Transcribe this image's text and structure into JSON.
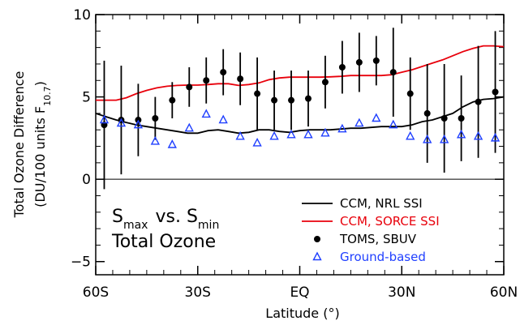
{
  "chart_data": {
    "type": "line",
    "xlabel": "Latitude (°)",
    "ylabel_line1": "Total Ozone Difference",
    "ylabel_line2_prefix": "(DU/100 units F",
    "ylabel_line2_sub": "10.7",
    "ylabel_line2_suffix": ")",
    "xlim": [
      -60,
      60
    ],
    "ylim": [
      -5.8,
      10
    ],
    "x_ticks": [
      {
        "value": -60,
        "label": "60S"
      },
      {
        "value": -30,
        "label": "30S"
      },
      {
        "value": 0,
        "label": "EQ"
      },
      {
        "value": 30,
        "label": "30N"
      },
      {
        "value": 60,
        "label": "60N"
      }
    ],
    "x_minor_ticks": [
      -55,
      -50,
      -45,
      -40,
      -35,
      -25,
      -20,
      -15,
      -10,
      -5,
      5,
      10,
      15,
      20,
      25,
      35,
      40,
      45,
      50,
      55
    ],
    "y_ticks": [
      {
        "value": -5,
        "label": "−5"
      },
      {
        "value": 0,
        "label": "0"
      },
      {
        "value": 5,
        "label": "5"
      },
      {
        "value": 10,
        "label": "10"
      }
    ],
    "y_minor_ticks": [
      -4,
      -3,
      -2,
      -1,
      1,
      2,
      3,
      4,
      6,
      7,
      8,
      9
    ],
    "zero_line": 0,
    "annotation": {
      "s_main": "S",
      "s_max_sub": "max",
      "vs": " vs. ",
      "s_min_sub": "min",
      "line2": "Total Ozone"
    },
    "legend": [
      {
        "label": "CCM, NRL SSI",
        "color": "#000000",
        "kind": "line"
      },
      {
        "label": "CCM, SORCE SSI",
        "color": "#e8000b",
        "kind": "line"
      },
      {
        "label": "TOMS, SBUV",
        "color": "#000000",
        "kind": "dot"
      },
      {
        "label": "Ground-based",
        "color": "#1f3fff",
        "kind": "triangle"
      }
    ],
    "series": [
      {
        "name": "CCM, NRL SSI",
        "kind": "line",
        "color": "#000000",
        "x": [
          -60,
          -57,
          -54,
          -51,
          -48,
          -45,
          -42,
          -39,
          -36,
          -33,
          -30,
          -27,
          -24,
          -21,
          -18,
          -15,
          -12,
          -9,
          -6,
          -3,
          0,
          3,
          6,
          9,
          12,
          15,
          18,
          21,
          24,
          27,
          30,
          33,
          36,
          39,
          42,
          45,
          48,
          51,
          54,
          57,
          60
        ],
        "y": [
          4.0,
          3.8,
          3.6,
          3.45,
          3.3,
          3.2,
          3.1,
          3.0,
          2.9,
          2.8,
          2.8,
          2.95,
          3.0,
          2.9,
          2.8,
          2.85,
          3.0,
          3.0,
          2.9,
          2.85,
          2.95,
          3.0,
          3.0,
          3.0,
          3.05,
          3.1,
          3.1,
          3.15,
          3.2,
          3.2,
          3.2,
          3.3,
          3.5,
          3.6,
          3.8,
          4.0,
          4.4,
          4.7,
          4.85,
          4.9,
          5.0
        ]
      },
      {
        "name": "CCM, SORCE SSI",
        "kind": "line",
        "color": "#e8000b",
        "x": [
          -60,
          -57,
          -54,
          -51,
          -48,
          -45,
          -42,
          -39,
          -36,
          -33,
          -30,
          -27,
          -24,
          -21,
          -18,
          -15,
          -12,
          -9,
          -6,
          -3,
          0,
          3,
          6,
          9,
          12,
          15,
          18,
          21,
          24,
          27,
          30,
          33,
          36,
          39,
          42,
          45,
          48,
          51,
          54,
          57,
          60
        ],
        "y": [
          4.8,
          4.8,
          4.8,
          4.95,
          5.2,
          5.4,
          5.55,
          5.65,
          5.7,
          5.72,
          5.72,
          5.75,
          5.8,
          5.8,
          5.7,
          5.75,
          5.85,
          6.05,
          6.15,
          6.2,
          6.2,
          6.2,
          6.2,
          6.22,
          6.25,
          6.3,
          6.3,
          6.3,
          6.3,
          6.35,
          6.5,
          6.65,
          6.85,
          7.05,
          7.25,
          7.5,
          7.75,
          7.95,
          8.1,
          8.1,
          8.05
        ]
      },
      {
        "name": "TOMS, SBUV",
        "kind": "dot",
        "color": "#000000",
        "x": [
          -57.5,
          -52.5,
          -47.5,
          -42.5,
          -37.5,
          -32.5,
          -27.5,
          -22.5,
          -17.5,
          -12.5,
          -7.5,
          -2.5,
          2.5,
          7.5,
          12.5,
          17.5,
          22.5,
          27.5,
          32.5,
          37.5,
          42.5,
          47.5,
          52.5,
          57.5
        ],
        "y": [
          3.3,
          3.6,
          3.6,
          3.7,
          4.8,
          5.6,
          6.0,
          6.5,
          6.1,
          5.2,
          4.8,
          4.8,
          4.9,
          5.9,
          6.8,
          7.1,
          7.2,
          6.5,
          5.2,
          4.0,
          3.7,
          3.7,
          4.7,
          5.3
        ],
        "err": [
          3.9,
          3.3,
          2.2,
          1.3,
          1.1,
          1.2,
          1.4,
          1.4,
          1.6,
          2.2,
          1.8,
          1.8,
          1.7,
          1.6,
          1.6,
          1.8,
          1.5,
          2.7,
          2.2,
          3.0,
          3.3,
          2.6,
          3.4,
          3.7
        ]
      },
      {
        "name": "Ground-based",
        "kind": "triangle",
        "color": "#1f3fff",
        "x": [
          -57.5,
          -52.5,
          -47.5,
          -42.5,
          -37.5,
          -32.5,
          -27.5,
          -22.5,
          -17.5,
          -12.5,
          -7.5,
          -2.5,
          2.5,
          7.5,
          12.5,
          17.5,
          22.5,
          27.5,
          32.5,
          37.5,
          42.5,
          47.5,
          52.5,
          57.5
        ],
        "y": [
          3.6,
          3.4,
          3.3,
          2.3,
          2.1,
          3.1,
          3.95,
          3.6,
          2.6,
          2.2,
          2.6,
          2.7,
          2.7,
          2.8,
          3.05,
          3.4,
          3.7,
          3.3,
          2.6,
          2.4,
          2.4,
          2.7,
          2.6,
          2.5
        ]
      }
    ]
  }
}
